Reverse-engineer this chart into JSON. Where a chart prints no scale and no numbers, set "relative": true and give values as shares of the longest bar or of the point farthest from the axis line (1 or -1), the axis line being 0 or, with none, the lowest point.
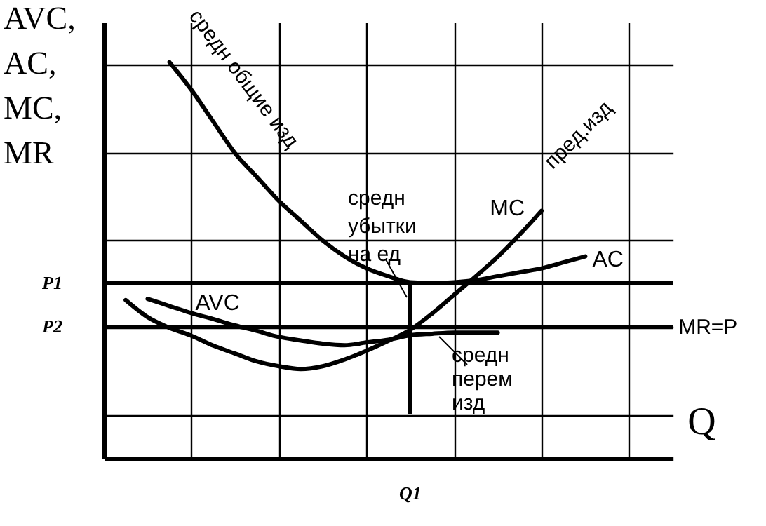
{
  "chart_data": {
    "type": "line",
    "relative": true,
    "grid": true,
    "xlabel": "Q",
    "ylabel": "AVC,\nAC,\nMC,\nMR",
    "categories": [
      null,
      null,
      null,
      null,
      null,
      null,
      null,
      null,
      null,
      null,
      null,
      null,
      null,
      null,
      null,
      null,
      null,
      null,
      null,
      null,
      null,
      null,
      null,
      null,
      null,
      null,
      null
    ],
    "series": [
      {
        "name": "AC",
        "color": "#000000",
        "values": [
          null,
          null,
          null,
          1,
          0.93,
          0.85,
          0.77,
          0.71,
          0.65,
          0.6,
          0.55,
          0.51,
          0.48,
          0.46,
          0.445,
          0.443,
          0.445,
          0.45,
          0.46,
          0.47,
          0.48,
          0.495,
          0.51,
          null,
          null,
          null,
          null
        ]
      },
      {
        "name": "MC",
        "color": "#000000",
        "values": [
          null,
          0.4,
          0.357,
          0.33,
          0.31,
          0.285,
          0.265,
          0.245,
          0.233,
          0.226,
          0.233,
          0.25,
          0.272,
          0.297,
          0.325,
          0.366,
          0.413,
          0.46,
          0.509,
          0.565,
          0.625,
          null,
          null,
          null,
          null,
          null,
          null
        ]
      },
      {
        "name": "AVC",
        "color": "#000000",
        "values": [
          null,
          null,
          0.403,
          0.385,
          0.367,
          0.352,
          0.336,
          0.322,
          0.307,
          0.298,
          0.29,
          0.286,
          0.293,
          0.3,
          0.311,
          0.315,
          0.318,
          0.318,
          0.318,
          null,
          null,
          null,
          null,
          null,
          null,
          null,
          null
        ]
      }
    ],
    "ref_lines": [
      {
        "axis": "y",
        "value": 0.442,
        "label": "P1",
        "color": "#000000"
      },
      {
        "axis": "y",
        "value": 0.332,
        "label": "P2",
        "color": "#000000"
      }
    ],
    "annotations": [
      "средн общие изд",
      "пред.изд",
      "средн\nубытки\nна ед",
      "средн\nперем\nизд",
      "MR=P",
      "Q1"
    ]
  }
}
